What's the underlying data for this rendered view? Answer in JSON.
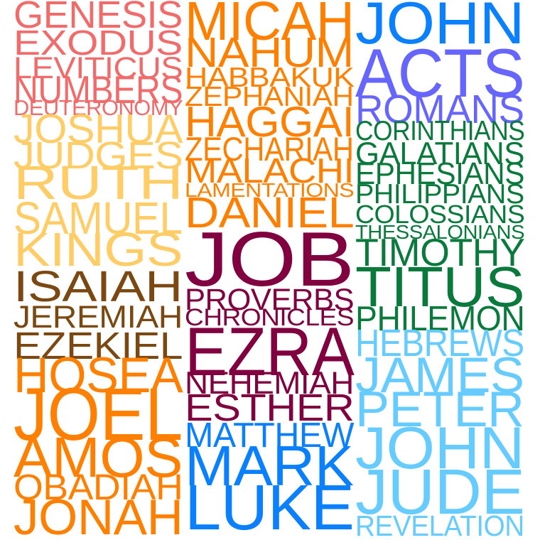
{
  "columns": [
    {
      "name": "column-left",
      "words": [
        {
          "text": "GENESIS",
          "color": "#f26b6b"
        },
        {
          "text": "EXODUS",
          "color": "#f26b6b"
        },
        {
          "text": "LEVITICUS",
          "color": "#f26b6b"
        },
        {
          "text": "NUMBERS",
          "color": "#f26b6b"
        },
        {
          "text": "DEUTERONOMY",
          "color": "#f26b6b"
        },
        {
          "text": "JOSHUA",
          "color": "#ffcc66"
        },
        {
          "text": "JUDGES",
          "color": "#ffcc66"
        },
        {
          "text": "RUTH",
          "color": "#ffcc66"
        },
        {
          "text": "SAMUEL",
          "color": "#ffcc66"
        },
        {
          "text": "KINGS",
          "color": "#ffcc66"
        },
        {
          "text": "ISAIAH",
          "color": "#7a4810"
        },
        {
          "text": "JEREMIAH",
          "color": "#7a4810"
        },
        {
          "text": "EZEKIEL",
          "color": "#7a4810"
        },
        {
          "text": "HOSEA",
          "color": "#ff8000"
        },
        {
          "text": "JOEL",
          "color": "#ff8000"
        },
        {
          "text": "AMOS",
          "color": "#ff8000"
        },
        {
          "text": "OBADIAH",
          "color": "#ff8000"
        },
        {
          "text": "JONAH",
          "color": "#ff8000"
        }
      ]
    },
    {
      "name": "column-middle",
      "words": [
        {
          "text": "MICAH",
          "color": "#ff8000"
        },
        {
          "text": "NAHUM",
          "color": "#ff8000"
        },
        {
          "text": "HABBAKUK",
          "color": "#ff8000"
        },
        {
          "text": "ZEPHANIAH",
          "color": "#ff8000"
        },
        {
          "text": "HAGGAI",
          "color": "#ff8000"
        },
        {
          "text": "ZECHARIAH",
          "color": "#ff8000"
        },
        {
          "text": "MALACHI",
          "color": "#ff8000"
        },
        {
          "text": "LAMENTATIONS",
          "color": "#ff8000"
        },
        {
          "text": "DANIEL",
          "color": "#ff8000"
        },
        {
          "text": "JOB",
          "color": "#800040"
        },
        {
          "text": "PROVERBS",
          "color": "#800040"
        },
        {
          "text": "CHRONICLES",
          "color": "#800040"
        },
        {
          "text": "EZRA",
          "color": "#800040"
        },
        {
          "text": "NEHEMIAH",
          "color": "#800040"
        },
        {
          "text": "ESTHER",
          "color": "#800040"
        },
        {
          "text": "MATTHEW",
          "color": "#0a80ff"
        },
        {
          "text": "MARK",
          "color": "#0a80ff"
        },
        {
          "text": "LUKE",
          "color": "#0a80ff"
        }
      ]
    },
    {
      "name": "column-right",
      "words": [
        {
          "text": "JOHN",
          "color": "#0a80ff"
        },
        {
          "text": "ACTS",
          "color": "#6666ff"
        },
        {
          "text": "ROMANS",
          "color": "#6666ff"
        },
        {
          "text": "CORINTHIANS",
          "color": "#0a7a3c"
        },
        {
          "text": "GALATIANS",
          "color": "#0a7a3c"
        },
        {
          "text": "EPHESIANS",
          "color": "#0a7a3c"
        },
        {
          "text": "PHILIPPIANS",
          "color": "#0a7a3c"
        },
        {
          "text": "COLOSSIANS",
          "color": "#0a7a3c"
        },
        {
          "text": "THESSALONIANS",
          "color": "#0a7a3c"
        },
        {
          "text": "TIMOTHY",
          "color": "#0a7a3c"
        },
        {
          "text": "TITUS",
          "color": "#0a7a3c"
        },
        {
          "text": "PHILEMON",
          "color": "#0a7a3c"
        },
        {
          "text": "HEBREWS",
          "color": "#66ccff"
        },
        {
          "text": "JAMES",
          "color": "#66ccff"
        },
        {
          "text": "PETER",
          "color": "#66ccff"
        },
        {
          "text": "JOHN",
          "color": "#66ccff"
        },
        {
          "text": "JUDE",
          "color": "#66ccff"
        },
        {
          "text": "REVELATION",
          "color": "#66ccff"
        }
      ]
    }
  ]
}
